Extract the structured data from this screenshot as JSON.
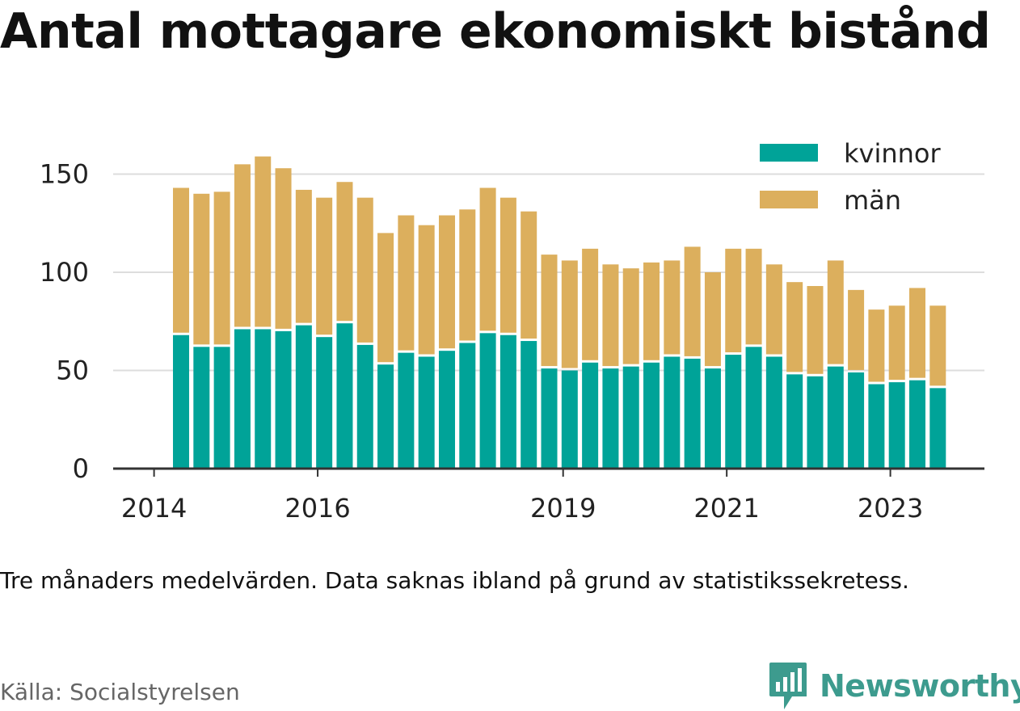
{
  "colors": {
    "kvinnor": "#00a398",
    "man": "#dcaf5d",
    "grid": "#dddddd",
    "axis": "#333333",
    "brand": "#3d9b8e"
  },
  "brand": {
    "name": "Newsworthy",
    "icon": "newsworthy-chart-icon"
  },
  "chart_data": {
    "type": "bar",
    "stacked": true,
    "title": "Antal mottagare ekonomiskt bistånd",
    "note": "Tre månaders medelvärden. Data saknas ibland på grund av statistikssekretess.",
    "source": "Källa: Socialstyrelsen",
    "x_tick_labels": [
      "2014",
      "2016",
      "2019",
      "2021",
      "2023"
    ],
    "x_ticks": [
      2014.0,
      2016.0,
      2019.0,
      2021.0,
      2023.0
    ],
    "y_ticks": [
      0,
      50,
      100,
      150
    ],
    "y_tick_labels": [
      "0",
      "50",
      "100",
      "150"
    ],
    "ylim": [
      0,
      165
    ],
    "grid": true,
    "legend_position": "top-right",
    "x": [
      2014.33,
      2014.58,
      2014.83,
      2015.08,
      2015.33,
      2015.58,
      2015.83,
      2016.08,
      2016.33,
      2016.58,
      2016.83,
      2017.08,
      2017.33,
      2017.58,
      2017.83,
      2018.08,
      2018.33,
      2018.58,
      2018.83,
      2019.08,
      2019.33,
      2019.58,
      2019.83,
      2020.08,
      2020.33,
      2020.58,
      2020.83,
      2021.08,
      2021.33,
      2021.58,
      2021.83,
      2022.08,
      2022.33,
      2022.58,
      2022.83,
      2023.08,
      2023.33,
      2023.58
    ],
    "series": [
      {
        "name": "kvinnor",
        "values": [
          68,
          62,
          62,
          71,
          71,
          70,
          73,
          67,
          74,
          63,
          53,
          59,
          57,
          60,
          64,
          69,
          68,
          65,
          51,
          50,
          54,
          51,
          52,
          54,
          57,
          56,
          51,
          58,
          62,
          57,
          48,
          47,
          52,
          49,
          43,
          44,
          45,
          41
        ]
      },
      {
        "name": "män",
        "values": [
          75,
          78,
          79,
          84,
          88,
          83,
          69,
          71,
          72,
          75,
          67,
          70,
          67,
          69,
          68,
          74,
          70,
          66,
          58,
          56,
          58,
          53,
          50,
          51,
          49,
          57,
          49,
          54,
          50,
          47,
          47,
          46,
          54,
          42,
          38,
          39,
          47,
          42
        ]
      }
    ]
  }
}
